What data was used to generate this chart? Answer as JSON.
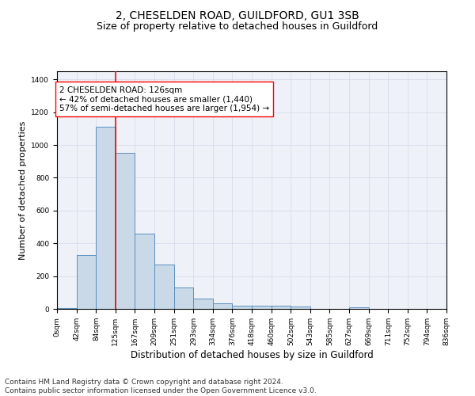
{
  "title1": "2, CHESELDEN ROAD, GUILDFORD, GU1 3SB",
  "title2": "Size of property relative to detached houses in Guildford",
  "xlabel": "Distribution of detached houses by size in Guildford",
  "ylabel": "Number of detached properties",
  "bar_values": [
    5,
    330,
    1110,
    950,
    460,
    270,
    130,
    65,
    35,
    20,
    20,
    20,
    15,
    0,
    0,
    10,
    0,
    0,
    0,
    0
  ],
  "bin_edges": [
    0,
    42,
    84,
    125,
    167,
    209,
    251,
    293,
    334,
    376,
    418,
    460,
    502,
    543,
    585,
    627,
    669,
    711,
    752,
    794,
    836
  ],
  "tick_labels": [
    "0sqm",
    "42sqm",
    "84sqm",
    "125sqm",
    "167sqm",
    "209sqm",
    "251sqm",
    "293sqm",
    "334sqm",
    "376sqm",
    "418sqm",
    "460sqm",
    "502sqm",
    "543sqm",
    "585sqm",
    "627sqm",
    "669sqm",
    "711sqm",
    "752sqm",
    "794sqm",
    "836sqm"
  ],
  "bar_color": "#c9d9e8",
  "bar_edge_color": "#5a8fc0",
  "red_line_x": 125,
  "annotation_box_text": "2 CHESELDEN ROAD: 126sqm\n← 42% of detached houses are smaller (1,440)\n57% of semi-detached houses are larger (1,954) →",
  "ylim": [
    0,
    1450
  ],
  "yticks": [
    0,
    200,
    400,
    600,
    800,
    1000,
    1200,
    1400
  ],
  "grid_color": "#d0d8e8",
  "bg_color": "#eef2f8",
  "footnote1": "Contains HM Land Registry data © Crown copyright and database right 2024.",
  "footnote2": "Contains public sector information licensed under the Open Government Licence v3.0.",
  "title1_fontsize": 10,
  "title2_fontsize": 9,
  "xlabel_fontsize": 8.5,
  "ylabel_fontsize": 8,
  "annotation_fontsize": 7.5,
  "footnote_fontsize": 6.5,
  "tick_fontsize": 6.5
}
